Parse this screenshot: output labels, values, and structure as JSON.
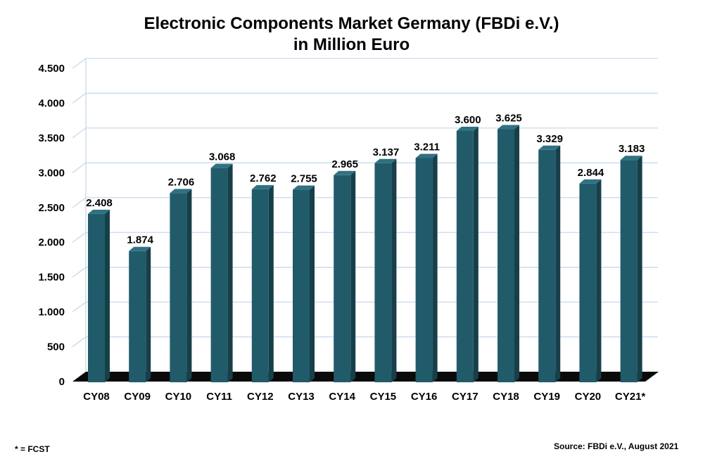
{
  "chart_data": {
    "type": "bar",
    "title": "Electronic Components Market Germany (FBDi e.V.)",
    "subtitle": "in Million Euro",
    "xlabel": "",
    "ylabel": "",
    "categories": [
      "CY08",
      "CY09",
      "CY10",
      "CY11",
      "CY12",
      "CY13",
      "CY14",
      "CY15",
      "CY16",
      "CY17",
      "CY18",
      "CY19",
      "CY20",
      "CY21*"
    ],
    "values": [
      2408,
      1874,
      2706,
      3068,
      2762,
      2755,
      2965,
      3137,
      3211,
      3600,
      3625,
      3329,
      2844,
      3183
    ],
    "value_labels": [
      "2.408",
      "1.874",
      "2.706",
      "3.068",
      "2.762",
      "2.755",
      "2.965",
      "3.137",
      "3.211",
      "3.600",
      "3.625",
      "3.329",
      "2.844",
      "3.183"
    ],
    "yticks": [
      0,
      500,
      1000,
      1500,
      2000,
      2500,
      3000,
      3500,
      4000,
      4500
    ],
    "ytick_labels": [
      "0",
      "500",
      "1.000",
      "1.500",
      "2.000",
      "2.500",
      "3.000",
      "3.500",
      "4.000",
      "4.500"
    ],
    "ylim": [
      0,
      4500
    ],
    "grid": true,
    "legend": "none",
    "style": "3d-column",
    "colors": {
      "bar_front": "#215b6a",
      "bar_side": "#173f4a",
      "bar_top": "#2f7282",
      "floor": "#0a0a0a",
      "grid": "#c9d9ec"
    }
  },
  "footnote": "* = FCST",
  "source": "Source: FBDi e.V., August 2021"
}
